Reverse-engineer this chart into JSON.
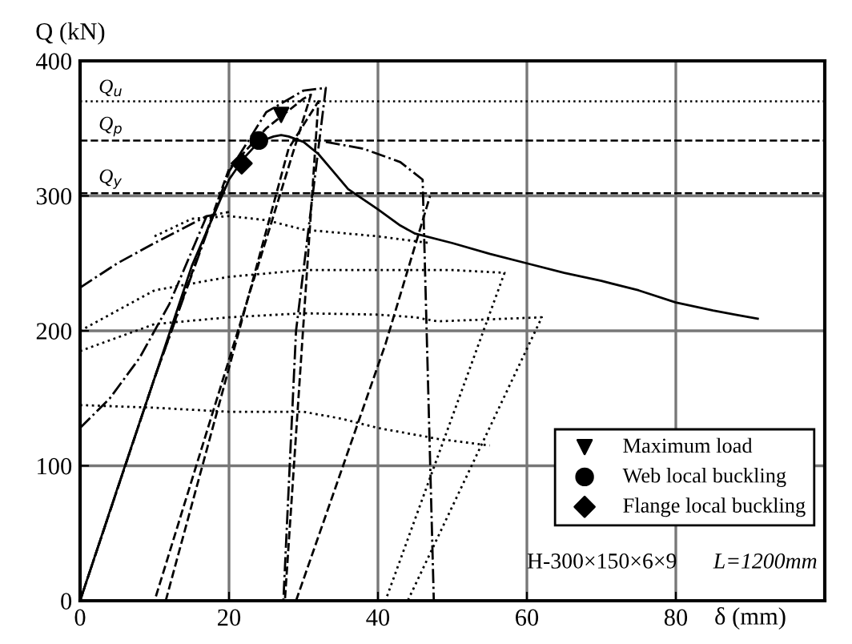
{
  "chart_data": {
    "type": "line",
    "xlabel": "δ (mm)",
    "ylabel": "Q (kN)",
    "xlim": [
      0,
      100
    ],
    "ylim": [
      0,
      400
    ],
    "xticks": [
      0,
      20,
      40,
      60,
      80,
      {
        "value": 100,
        "label": null
      }
    ],
    "yticks": [
      0,
      100,
      200,
      300,
      400
    ],
    "grid": true,
    "legend": "bottom right",
    "ref_lines": [
      {
        "axis": "y",
        "value": 370,
        "label": "Q$_{u}$",
        "line_style": "dotted"
      },
      {
        "axis": "y",
        "value": 341,
        "label": "Q$_{p}$",
        "line_style": "dashed"
      },
      {
        "axis": "y",
        "value": 302,
        "label": "Q$_{y}$",
        "line_style": "dashed"
      }
    ],
    "annotations": [
      "H-300×150×6×9",
      "L=1200mm"
    ],
    "series": [
      {
        "line_style": "solid",
        "color": "#000000",
        "x": [
          0,
          5,
          10,
          15,
          20,
          22,
          24,
          26,
          27,
          28,
          30,
          32,
          34,
          36,
          40,
          43,
          45,
          50,
          55,
          60,
          65,
          70,
          75,
          80,
          85,
          88,
          91
        ],
        "values": [
          0,
          83,
          165,
          248,
          312,
          328,
          340,
          344,
          345,
          344,
          340,
          331,
          318,
          305,
          290,
          278,
          272,
          265,
          257,
          250,
          243,
          237,
          230,
          221,
          215,
          212,
          209
        ]
      },
      {
        "line_style": "dashdot",
        "color": "#000000",
        "x": [
          0,
          10,
          20,
          25,
          30,
          33,
          29,
          27.3
        ],
        "values": [
          0,
          165,
          318,
          362,
          378,
          380,
          200,
          0
        ]
      },
      {
        "line_style": "dashdot",
        "color": "#000000",
        "x": [
          33,
          38,
          43,
          46,
          47.5
        ],
        "values": [
          340,
          335,
          325,
          312,
          0
        ]
      },
      {
        "line_style": "dashdot",
        "color": "#000000",
        "x": [
          0,
          5,
          10,
          17,
          20
        ],
        "values": [
          232,
          250,
          265,
          285,
          288
        ]
      },
      {
        "line_style": "dashdot",
        "color": "#000000",
        "x": [
          0,
          4,
          8,
          12,
          17
        ],
        "values": [
          128,
          150,
          180,
          220,
          285
        ]
      },
      {
        "line_style": "dashed",
        "color": "#000000",
        "x": [
          0,
          10,
          20,
          25,
          30,
          31,
          10
        ],
        "values": [
          0,
          165,
          320,
          350,
          372,
          375,
          0
        ]
      },
      {
        "line_style": "dashed",
        "color": "#000000",
        "x": [
          11.5,
          28,
          32,
          27.5
        ],
        "values": [
          0,
          335,
          370,
          0
        ]
      },
      {
        "line_style": "dashed",
        "color": "#000000",
        "x": [
          29,
          41,
          47
        ],
        "values": [
          0,
          190,
          300
        ]
      },
      {
        "line_style": "dotted",
        "color": "#000000",
        "x": [
          0,
          10,
          20,
          30,
          40,
          45,
          48,
          62,
          44
        ],
        "values": [
          185,
          205,
          210,
          213,
          212,
          210,
          207,
          210,
          0
        ]
      },
      {
        "line_style": "dotted",
        "color": "#000000",
        "x": [
          0,
          10,
          20,
          30,
          40,
          50,
          57,
          41
        ],
        "values": [
          200,
          230,
          240,
          245,
          245,
          245,
          243,
          0
        ]
      },
      {
        "line_style": "dotted",
        "color": "#000000",
        "x": [
          0,
          10,
          20,
          30,
          35,
          40,
          48,
          55
        ],
        "values": [
          145,
          143,
          140,
          140,
          135,
          128,
          120,
          115
        ]
      },
      {
        "line_style": "dotted",
        "color": "#000000",
        "x": [
          10,
          15,
          20,
          25,
          30,
          40,
          47
        ],
        "values": [
          270,
          283,
          285,
          282,
          275,
          270,
          265
        ]
      },
      {
        "type": "scatter",
        "name": "Maximum load",
        "marker": "triangle",
        "color": "#000000",
        "x": [
          27
        ],
        "values": [
          360
        ]
      },
      {
        "type": "scatter",
        "name": "Web local buckling",
        "marker": "circle",
        "color": "#000000",
        "x": [
          24
        ],
        "values": [
          341
        ]
      },
      {
        "type": "scatter",
        "name": "Flange local buckling",
        "marker": "diamond",
        "color": "#000000",
        "x": [
          21.7
        ],
        "values": [
          324
        ]
      }
    ]
  }
}
